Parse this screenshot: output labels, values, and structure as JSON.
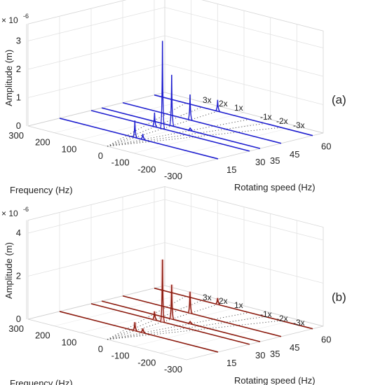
{
  "chart_data": [
    {
      "panel_label": "(a)",
      "type": "waterfall-3d",
      "exponent_label": "× 10",
      "exponent_power": "-6",
      "zlabel": "Amplitude (m)",
      "xlabel": "Frequency (Hz)",
      "ylabel": "Rotating speed (Hz)",
      "zlim": [
        0,
        3
      ],
      "z_ticks": [
        "0",
        "1",
        "2",
        "3"
      ],
      "frequency_ticks": [
        "300",
        "200",
        "100",
        "0",
        "-100",
        "-200",
        "-300"
      ],
      "speed_ticks": [
        "15",
        "30",
        "35",
        "45",
        "60"
      ],
      "order_labels": [
        "3x",
        "2x",
        "1x",
        "-1x",
        "-2x",
        "-3x"
      ],
      "line_color": "#1f1fcf",
      "grid": true,
      "series": [
        {
          "speed": 15,
          "peaks": [
            {
              "frequency": 15,
              "amplitude": 0.6
            },
            {
              "frequency": -15,
              "amplitude": 0.2
            }
          ]
        },
        {
          "speed": 30,
          "peaks": [
            {
              "frequency": 30,
              "amplitude": 3.1
            },
            {
              "frequency": 60,
              "amplitude": 0.5
            }
          ]
        },
        {
          "speed": 35,
          "peaks": [
            {
              "frequency": 35,
              "amplitude": 1.8
            },
            {
              "frequency": -35,
              "amplitude": 0.1
            }
          ]
        },
        {
          "speed": 45,
          "peaks": [
            {
              "frequency": 45,
              "amplitude": 0.9
            }
          ]
        },
        {
          "speed": 60,
          "peaks": [
            {
              "frequency": 60,
              "amplitude": 0.4
            }
          ]
        }
      ]
    },
    {
      "panel_label": "(b)",
      "type": "waterfall-3d",
      "exponent_label": "× 10",
      "exponent_power": "-6",
      "zlabel": "Amplitude (m)",
      "xlabel": "Frequency (Hz)",
      "ylabel": "Rotating speed (Hz)",
      "zlim": [
        0,
        4
      ],
      "z_ticks": [
        "0",
        "2",
        "4"
      ],
      "frequency_ticks": [
        "300",
        "200",
        "100",
        "0",
        "-100",
        "-200",
        "-300"
      ],
      "speed_ticks": [
        "15",
        "30",
        "35",
        "45",
        "60"
      ],
      "order_labels": [
        "3x",
        "2x",
        "1x",
        "-1x",
        "-2x",
        "-3x"
      ],
      "line_color": "#8b1a0e",
      "grid": true,
      "series": [
        {
          "speed": 15,
          "peaks": [
            {
              "frequency": 15,
              "amplitude": 0.4
            },
            {
              "frequency": -15,
              "amplitude": 0.2
            }
          ]
        },
        {
          "speed": 30,
          "peaks": [
            {
              "frequency": 30,
              "amplitude": 2.9
            },
            {
              "frequency": 60,
              "amplitude": 0.4
            }
          ]
        },
        {
          "speed": 35,
          "peaks": [
            {
              "frequency": 35,
              "amplitude": 1.6
            },
            {
              "frequency": -35,
              "amplitude": 0.1
            }
          ]
        },
        {
          "speed": 45,
          "peaks": [
            {
              "frequency": 45,
              "amplitude": 1.0
            }
          ]
        },
        {
          "speed": 60,
          "peaks": [
            {
              "frequency": 60,
              "amplitude": 0.3
            }
          ]
        }
      ]
    }
  ]
}
